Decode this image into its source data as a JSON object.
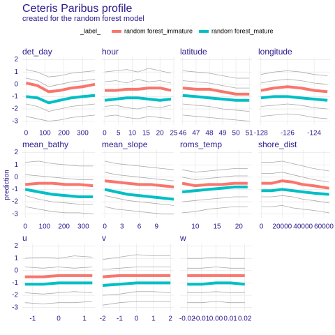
{
  "chart_data": {
    "type": "line",
    "title": "Ceteris Paribus profile",
    "subtitle": "created for the random forest model",
    "ylabel": "prediction",
    "legend_title": "_label_",
    "series": [
      {
        "name": "random forest_immature",
        "color": "#F8766D"
      },
      {
        "name": "random forest_mature",
        "color": "#00BFC4"
      }
    ],
    "profile_color": "#aaaaaa",
    "ylim": [
      -3.3,
      2.2
    ],
    "yticks": [
      -3,
      -2,
      -1,
      0,
      1,
      2
    ],
    "grid": true,
    "panels": [
      {
        "title": "det_day",
        "x": [
          0,
          60,
          120,
          180,
          240,
          300,
          365
        ],
        "xlim": [
          -20,
          365
        ],
        "xticks": [
          0,
          100,
          200,
          300
        ],
        "values": [
          [
            0.1,
            -0.1,
            -0.6,
            -0.5,
            -0.3,
            -0.2,
            0
          ],
          [
            -1.0,
            -1.1,
            -1.5,
            -1.3,
            -1.1,
            -1.0,
            -0.9
          ]
        ],
        "profiles": [
          [
            1.2,
            1.0,
            0.6,
            0.7,
            0.9,
            1.0,
            1.1
          ],
          [
            0.5,
            0.3,
            -0.2,
            0,
            0.2,
            0.3,
            0.4
          ],
          [
            -1.6,
            -1.8,
            -2.2,
            -2.0,
            -1.8,
            -1.7,
            -1.6
          ],
          [
            -2.6,
            -2.8,
            -3.0,
            -2.9,
            -2.7,
            -2.6,
            -2.5
          ]
        ]
      },
      {
        "title": "hour",
        "x": [
          0,
          4,
          8,
          12,
          16,
          20,
          24
        ],
        "xlim": [
          -1,
          25
        ],
        "xticks": [
          0,
          5,
          10,
          15,
          20,
          25
        ],
        "values": [
          [
            -0.5,
            -0.5,
            -0.4,
            -0.4,
            -0.3,
            -0.3,
            -0.5
          ],
          [
            -1.3,
            -1.2,
            -1.1,
            -1.1,
            -1.2,
            -1.3,
            -1.2
          ]
        ],
        "profiles": [
          [
            1.0,
            1.1,
            1.2,
            1.0,
            1.3,
            1.1,
            0.9
          ],
          [
            0.2,
            0.3,
            0.1,
            0.4,
            0.2,
            0.3,
            0.1
          ],
          [
            -1.8,
            -1.7,
            -1.9,
            -2.0,
            -1.8,
            -1.9,
            -1.7
          ],
          [
            -2.6,
            -2.5,
            -2.7,
            -2.8,
            -2.6,
            -2.7,
            -2.8
          ]
        ]
      },
      {
        "title": "latitude",
        "x": [
          46,
          47,
          48,
          49,
          50,
          51
        ],
        "xlim": [
          45.8,
          51.2
        ],
        "xticks": [
          46,
          47,
          48,
          49,
          50,
          51
        ],
        "values": [
          [
            -0.3,
            -0.4,
            -0.4,
            -0.6,
            -0.8,
            -0.8
          ],
          [
            -0.9,
            -1.0,
            -1.1,
            -1.2,
            -1.3,
            -1.3
          ]
        ],
        "profiles": [
          [
            1.1,
            1.0,
            0.9,
            0.7,
            0.5,
            0.5
          ],
          [
            0.3,
            0.2,
            0.1,
            -0.1,
            -0.3,
            -0.3
          ],
          [
            -1.6,
            -1.7,
            -1.8,
            -2.0,
            -2.1,
            -2.2
          ],
          [
            -2.5,
            -2.6,
            -2.7,
            -2.8,
            -2.9,
            -3.0
          ]
        ]
      },
      {
        "title": "longitude",
        "x": [
          -128,
          -127,
          -126,
          -125,
          -124,
          -123
        ],
        "xlim": [
          -128.2,
          -122.8
        ],
        "xticks": [
          -128,
          -126,
          -124
        ],
        "values": [
          [
            -0.5,
            -0.3,
            -0.2,
            -0.3,
            -0.5,
            -0.6
          ],
          [
            -1.1,
            -1.0,
            -1.0,
            -1.1,
            -1.2,
            -1.3
          ]
        ],
        "profiles": [
          [
            0.8,
            1.0,
            1.1,
            1.0,
            0.8,
            0.7
          ],
          [
            0.1,
            0.3,
            0.4,
            0.3,
            0.1,
            0
          ],
          [
            -1.8,
            -1.7,
            -1.6,
            -1.7,
            -1.9,
            -2.0
          ],
          [
            -2.6,
            -2.5,
            -2.4,
            -2.5,
            -2.7,
            -2.8
          ]
        ]
      },
      {
        "title": "mean_bathy",
        "x": [
          0,
          70,
          140,
          210,
          280,
          350
        ],
        "xlim": [
          -15,
          360
        ],
        "xticks": [
          0,
          100,
          200,
          300
        ],
        "values": [
          [
            -0.6,
            -0.5,
            -0.5,
            -0.6,
            -0.6,
            -0.7
          ],
          [
            -1.0,
            -1.2,
            -1.4,
            -1.5,
            -1.6,
            -1.6
          ]
        ],
        "profiles": [
          [
            1.2,
            1.3,
            1.1,
            1.0,
            0.9,
            0.9
          ],
          [
            0.2,
            0.1,
            0,
            -0.1,
            -0.2,
            -0.2
          ],
          [
            -1.5,
            -1.8,
            -2.0,
            -2.1,
            -2.2,
            -2.2
          ],
          [
            -2.4,
            -2.6,
            -2.8,
            -2.9,
            -2.9,
            -3.0
          ]
        ]
      },
      {
        "title": "mean_slope",
        "x": [
          0,
          2,
          4,
          6,
          8,
          10,
          12
        ],
        "xlim": [
          -0.5,
          12
        ],
        "xticks": [
          0,
          3,
          6,
          9
        ],
        "values": [
          [
            -0.3,
            -0.4,
            -0.5,
            -0.6,
            -0.6,
            -0.7,
            -0.8
          ],
          [
            -1.0,
            -1.2,
            -1.4,
            -1.5,
            -1.6,
            -1.7,
            -1.8
          ]
        ],
        "profiles": [
          [
            1.3,
            1.1,
            1.0,
            0.9,
            0.8,
            0.7,
            0.6
          ],
          [
            0.4,
            0.2,
            0.1,
            0,
            -0.1,
            -0.2,
            -0.3
          ],
          [
            -1.5,
            -1.7,
            -1.9,
            -2.0,
            -2.1,
            -2.2,
            -2.3
          ],
          [
            -2.4,
            -2.6,
            -2.7,
            -2.8,
            -2.9,
            -3.0,
            -3.0
          ]
        ]
      },
      {
        "title": "roms_temp",
        "x": [
          7,
          10,
          13,
          16,
          19,
          22
        ],
        "xlim": [
          6.5,
          23
        ],
        "xticks": [
          10,
          15,
          20
        ],
        "values": [
          [
            -0.5,
            -0.7,
            -0.6,
            -0.6,
            -0.5,
            -0.5
          ],
          [
            -1.2,
            -1.1,
            -1.0,
            -0.9,
            -0.8,
            -0.8
          ]
        ],
        "profiles": [
          [
            0.6,
            0.4,
            0.5,
            0.6,
            0.7,
            0.7
          ],
          [
            0,
            -0.2,
            -0.1,
            0,
            0.1,
            0.1
          ],
          [
            -2.0,
            -1.9,
            -1.8,
            -1.7,
            -1.6,
            -1.6
          ],
          [
            -2.9,
            -2.8,
            -2.6,
            -2.5,
            -2.4,
            -2.4
          ]
        ]
      },
      {
        "title": "shore_dist",
        "x": [
          0,
          10000,
          20000,
          30000,
          40000,
          50000,
          65000
        ],
        "xlim": [
          -3000,
          66000
        ],
        "xticks": [
          0,
          20000,
          40000,
          60000
        ],
        "values": [
          [
            -0.5,
            -0.5,
            -0.3,
            -0.4,
            -0.6,
            -0.7,
            -0.9
          ],
          [
            -1.1,
            -1.1,
            -1.0,
            -1.1,
            -1.2,
            -1.3,
            -1.4
          ]
        ],
        "profiles": [
          [
            1.2,
            1.2,
            1.3,
            1.1,
            0.9,
            0.7,
            0.5
          ],
          [
            0.3,
            0.3,
            0.4,
            0.2,
            0,
            -0.2,
            -0.4
          ],
          [
            -1.6,
            -1.6,
            -1.5,
            -1.6,
            -1.8,
            -1.9,
            -2.1
          ],
          [
            -2.4,
            -2.4,
            -2.3,
            -2.5,
            -2.6,
            -2.7,
            -2.9
          ]
        ]
      },
      {
        "title": "u",
        "x": [
          -1.3,
          -0.6,
          0,
          0.6,
          1.3
        ],
        "xlim": [
          -1.4,
          1.4
        ],
        "xticks": [
          -1,
          0,
          1
        ],
        "values": [
          [
            -0.5,
            -0.5,
            -0.4,
            -0.4,
            -0.4
          ],
          [
            -1.1,
            -1.1,
            -1.0,
            -1.0,
            -1.0
          ]
        ],
        "profiles": [
          [
            1.0,
            1.1,
            1.0,
            1.2,
            1.1
          ],
          [
            0.3,
            0.2,
            0.3,
            0.2,
            0.3
          ],
          [
            -1.8,
            -1.9,
            -1.8,
            -1.7,
            -1.8
          ],
          [
            -2.6,
            -2.7,
            -2.6,
            -2.6,
            -2.5
          ]
        ]
      },
      {
        "title": "v",
        "x": [
          -2,
          -1,
          0,
          1,
          2
        ],
        "xlim": [
          -2.05,
          2.2
        ],
        "xticks": [
          -2,
          -1,
          0,
          1,
          2
        ],
        "values": [
          [
            -0.5,
            -0.4,
            -0.4,
            -0.4,
            -0.4
          ],
          [
            -1.2,
            -1.1,
            -1.0,
            -1.0,
            -1.0
          ]
        ],
        "profiles": [
          [
            0.9,
            1.1,
            1.3,
            1.2,
            1.2
          ],
          [
            0.1,
            0.2,
            0.3,
            0.3,
            0.3
          ],
          [
            -2.0,
            -1.9,
            -1.7,
            -1.7,
            -1.8
          ],
          [
            -2.8,
            -2.6,
            -2.5,
            -2.5,
            -2.5
          ]
        ]
      },
      {
        "title": "w",
        "x": [
          -0.02,
          -0.01,
          0,
          0.01,
          0.02
        ],
        "xlim": [
          -0.025,
          0.025
        ],
        "xticks": [
          -0.02,
          -0.01,
          {
            "value": 0,
            "label": "0.00"
          },
          0.01,
          0.02
        ],
        "values": [
          [
            -0.4,
            -0.4,
            -0.4,
            -0.4,
            -0.4
          ],
          [
            -1.1,
            -1.1,
            -1.0,
            -1.0,
            -1.1
          ]
        ],
        "profiles": [
          [
            1.0,
            1.0,
            1.1,
            1.0,
            1.0
          ],
          [
            0.2,
            0.2,
            0.3,
            0.2,
            0.2
          ],
          [
            -1.8,
            -1.8,
            -1.7,
            -1.8,
            -1.8
          ],
          [
            -2.6,
            -2.6,
            -2.5,
            -2.6,
            -2.6
          ]
        ]
      }
    ]
  }
}
